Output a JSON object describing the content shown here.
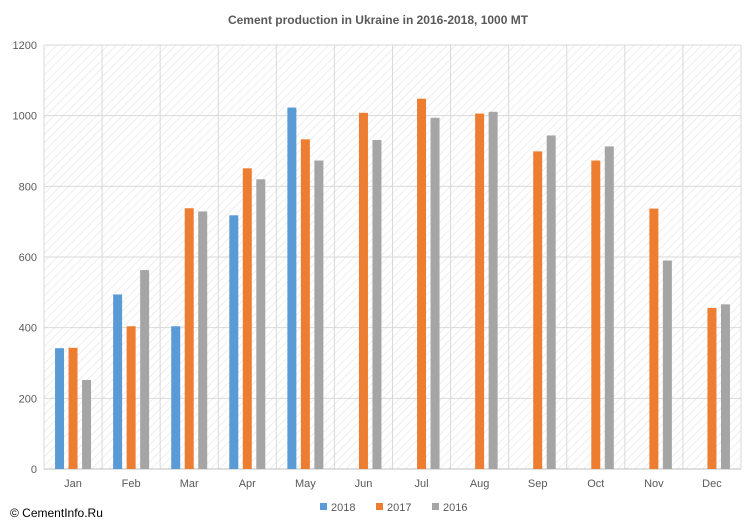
{
  "chart_data": {
    "type": "bar",
    "title": "Cement production in Ukraine in 2016-2018, 1000 MT",
    "categories": [
      "Jan",
      "Feb",
      "Mar",
      "Apr",
      "May",
      "Jun",
      "Jul",
      "Aug",
      "Sep",
      "Oct",
      "Nov",
      "Dec"
    ],
    "ylim": [
      0,
      1200
    ],
    "yticks": [
      0,
      200,
      400,
      600,
      800,
      1000,
      1200
    ],
    "grid": true,
    "legend_position": "bottom",
    "series": [
      {
        "name": "2018",
        "color": "#5b9bd5",
        "values": [
          342,
          494,
          404,
          718,
          1023,
          null,
          null,
          null,
          null,
          null,
          null,
          null
        ]
      },
      {
        "name": "2017",
        "color": "#ed7d31",
        "values": [
          343,
          404,
          738,
          851,
          933,
          1008,
          1048,
          1006,
          899,
          873,
          737,
          456
        ]
      },
      {
        "name": "2016",
        "color": "#a5a5a5",
        "values": [
          252,
          563,
          729,
          820,
          873,
          931,
          994,
          1011,
          944,
          913,
          590,
          466
        ]
      }
    ]
  },
  "footer": {
    "credit": "© CementInfo.Ru"
  }
}
